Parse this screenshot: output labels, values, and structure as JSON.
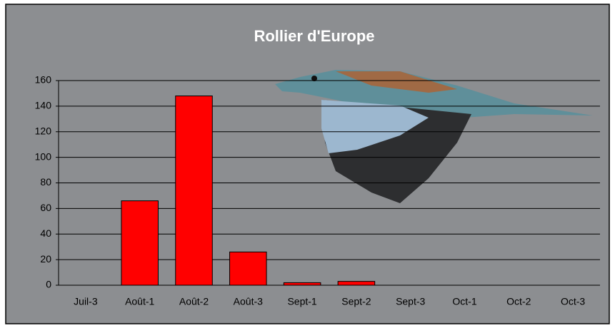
{
  "chart_data": {
    "type": "bar",
    "title": "Rollier d'Europe",
    "categories": [
      "Juil-3",
      "Août-1",
      "Août-2",
      "Août-3",
      "Sept-1",
      "Sept-2",
      "Sept-3",
      "Oct-1",
      "Oct-2",
      "Oct-3"
    ],
    "values": [
      0,
      66,
      148,
      26,
      2,
      3,
      0,
      0,
      0,
      0
    ],
    "color": "#ff0000",
    "ylim": [
      0,
      160
    ],
    "yticks": [
      0,
      20,
      40,
      60,
      80,
      100,
      120,
      140,
      160
    ],
    "grid": true
  }
}
